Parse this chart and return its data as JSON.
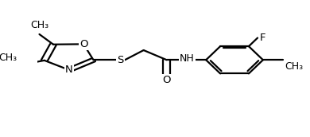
{
  "bg_color": "#ffffff",
  "line_color": "#000000",
  "line_width": 1.6,
  "font_size": 9.5,
  "figsize": [
    3.9,
    1.72
  ],
  "dpi": 100,
  "xlim": [
    0.0,
    1.0
  ],
  "ylim": [
    0.05,
    0.95
  ]
}
